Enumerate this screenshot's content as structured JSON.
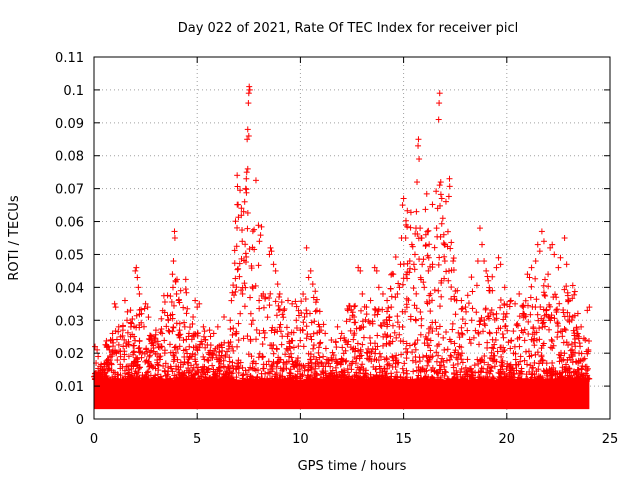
{
  "chart_data": {
    "type": "scatter",
    "title": "Day 022 of 2021, Rate Of TEC Index for receiver picl",
    "xlabel": "GPS time / hours",
    "ylabel": "ROTI / TECUs",
    "xlim": [
      0,
      25
    ],
    "ylim": [
      0,
      0.11
    ],
    "x_ticks": [
      "0",
      "5",
      "10",
      "15",
      "20",
      "25"
    ],
    "y_ticks": [
      "0",
      "0.01",
      "0.02",
      "0.03",
      "0.04",
      "0.05",
      "0.06",
      "0.07",
      "0.08",
      "0.09",
      "0.1",
      "0.11"
    ],
    "grid": true,
    "legend": "none",
    "marker": "+",
    "color": "#ff0000",
    "background_band": {
      "x": [
        0,
        24
      ],
      "y": [
        0.003,
        0.012
      ],
      "note": "dense continuous cluster of points"
    },
    "series": [
      {
        "points": [
          [
            0.05,
            0.022
          ],
          [
            0.1,
            0.017
          ],
          [
            0.15,
            0.021
          ],
          [
            0.2,
            0.019
          ],
          [
            0.3,
            0.016
          ],
          [
            0.5,
            0.014
          ],
          [
            0.7,
            0.018
          ],
          [
            0.9,
            0.026
          ],
          [
            1.0,
            0.035
          ],
          [
            1.05,
            0.034
          ],
          [
            1.2,
            0.028
          ],
          [
            1.4,
            0.027
          ],
          [
            1.5,
            0.036
          ],
          [
            1.6,
            0.03
          ],
          [
            1.8,
            0.029
          ],
          [
            2.0,
            0.045
          ],
          [
            2.05,
            0.046
          ],
          [
            2.1,
            0.043
          ],
          [
            2.15,
            0.04
          ],
          [
            2.2,
            0.038
          ],
          [
            2.3,
            0.032
          ],
          [
            2.5,
            0.035
          ],
          [
            2.6,
            0.034
          ],
          [
            2.8,
            0.025
          ],
          [
            3.0,
            0.027
          ],
          [
            3.3,
            0.026
          ],
          [
            3.6,
            0.03
          ],
          [
            3.8,
            0.044
          ],
          [
            3.85,
            0.048
          ],
          [
            3.9,
            0.057
          ],
          [
            3.92,
            0.055
          ],
          [
            3.95,
            0.042
          ],
          [
            4.0,
            0.038
          ],
          [
            4.1,
            0.036
          ],
          [
            4.2,
            0.039
          ],
          [
            4.4,
            0.028
          ],
          [
            4.6,
            0.026
          ],
          [
            4.8,
            0.031
          ],
          [
            4.9,
            0.036
          ],
          [
            5.0,
            0.034
          ],
          [
            5.1,
            0.035
          ],
          [
            5.3,
            0.028
          ],
          [
            5.4,
            0.024
          ],
          [
            5.6,
            0.027
          ],
          [
            5.8,
            0.026
          ],
          [
            6.0,
            0.028
          ],
          [
            6.3,
            0.031
          ],
          [
            6.6,
            0.03
          ],
          [
            6.9,
            0.026
          ],
          [
            7.0,
            0.029
          ],
          [
            7.2,
            0.038
          ],
          [
            7.25,
            0.063
          ],
          [
            7.3,
            0.066
          ],
          [
            7.35,
            0.07
          ],
          [
            7.38,
            0.073
          ],
          [
            7.4,
            0.075
          ],
          [
            7.42,
            0.085
          ],
          [
            7.45,
            0.088
          ],
          [
            7.48,
            0.096
          ],
          [
            7.5,
            0.099
          ],
          [
            7.52,
            0.101
          ],
          [
            7.55,
            0.1
          ],
          [
            7.45,
            0.076
          ],
          [
            7.5,
            0.086
          ],
          [
            7.6,
            0.032
          ],
          [
            7.7,
            0.03
          ],
          [
            8.0,
            0.036
          ],
          [
            8.2,
            0.038
          ],
          [
            8.3,
            0.037
          ],
          [
            8.5,
            0.05
          ],
          [
            8.55,
            0.052
          ],
          [
            8.6,
            0.051
          ],
          [
            8.7,
            0.047
          ],
          [
            8.8,
            0.045
          ],
          [
            8.9,
            0.041
          ],
          [
            9.0,
            0.038
          ],
          [
            9.2,
            0.033
          ],
          [
            9.4,
            0.036
          ],
          [
            9.6,
            0.035
          ],
          [
            9.8,
            0.03
          ],
          [
            10.0,
            0.027
          ],
          [
            10.2,
            0.031
          ],
          [
            10.3,
            0.052
          ],
          [
            10.4,
            0.043
          ],
          [
            10.5,
            0.045
          ],
          [
            10.6,
            0.041
          ],
          [
            10.8,
            0.033
          ],
          [
            11.0,
            0.027
          ],
          [
            11.2,
            0.026
          ],
          [
            11.5,
            0.024
          ],
          [
            11.8,
            0.028
          ],
          [
            12.0,
            0.026
          ],
          [
            12.3,
            0.033
          ],
          [
            12.6,
            0.031
          ],
          [
            12.8,
            0.046
          ],
          [
            12.9,
            0.045
          ],
          [
            13.0,
            0.038
          ],
          [
            13.2,
            0.034
          ],
          [
            13.4,
            0.036
          ],
          [
            13.6,
            0.046
          ],
          [
            13.7,
            0.045
          ],
          [
            13.8,
            0.04
          ],
          [
            14.0,
            0.038
          ],
          [
            14.2,
            0.036
          ],
          [
            14.4,
            0.034
          ],
          [
            14.5,
            0.044
          ],
          [
            14.6,
            0.037
          ],
          [
            14.7,
            0.038
          ],
          [
            14.8,
            0.04
          ],
          [
            14.85,
            0.047
          ],
          [
            14.9,
            0.055
          ],
          [
            14.95,
            0.065
          ],
          [
            15.0,
            0.067
          ],
          [
            15.1,
            0.055
          ],
          [
            15.3,
            0.048
          ],
          [
            15.4,
            0.053
          ],
          [
            15.5,
            0.047
          ],
          [
            15.55,
            0.05
          ],
          [
            15.6,
            0.058
          ],
          [
            15.62,
            0.063
          ],
          [
            15.65,
            0.072
          ],
          [
            15.7,
            0.083
          ],
          [
            15.72,
            0.085
          ],
          [
            15.75,
            0.079
          ],
          [
            15.8,
            0.058
          ],
          [
            15.85,
            0.055
          ],
          [
            15.9,
            0.047
          ],
          [
            16.0,
            0.04
          ],
          [
            16.2,
            0.045
          ],
          [
            16.4,
            0.047
          ],
          [
            16.6,
            0.058
          ],
          [
            16.65,
            0.064
          ],
          [
            16.7,
            0.091
          ],
          [
            16.72,
            0.096
          ],
          [
            16.75,
            0.099
          ],
          [
            16.8,
            0.072
          ],
          [
            16.85,
            0.067
          ],
          [
            16.9,
            0.061
          ],
          [
            16.95,
            0.056
          ],
          [
            17.0,
            0.048
          ],
          [
            17.2,
            0.045
          ],
          [
            17.4,
            0.048
          ],
          [
            17.6,
            0.039
          ],
          [
            17.8,
            0.036
          ],
          [
            18.0,
            0.034
          ],
          [
            18.3,
            0.03
          ],
          [
            18.6,
            0.048
          ],
          [
            18.7,
            0.058
          ],
          [
            18.8,
            0.053
          ],
          [
            18.9,
            0.048
          ],
          [
            19.0,
            0.045
          ],
          [
            19.1,
            0.042
          ],
          [
            19.3,
            0.039
          ],
          [
            19.5,
            0.046
          ],
          [
            19.6,
            0.049
          ],
          [
            19.7,
            0.047
          ],
          [
            19.9,
            0.04
          ],
          [
            20.0,
            0.032
          ],
          [
            20.2,
            0.036
          ],
          [
            20.4,
            0.035
          ],
          [
            20.6,
            0.038
          ],
          [
            20.8,
            0.034
          ],
          [
            21.0,
            0.044
          ],
          [
            21.1,
            0.043
          ],
          [
            21.2,
            0.046
          ],
          [
            21.4,
            0.048
          ],
          [
            21.5,
            0.053
          ],
          [
            21.6,
            0.051
          ],
          [
            21.7,
            0.057
          ],
          [
            21.8,
            0.054
          ],
          [
            22.0,
            0.044
          ],
          [
            22.1,
            0.052
          ],
          [
            22.2,
            0.053
          ],
          [
            22.3,
            0.05
          ],
          [
            22.5,
            0.046
          ],
          [
            22.6,
            0.049
          ],
          [
            22.8,
            0.055
          ],
          [
            22.9,
            0.047
          ],
          [
            23.0,
            0.036
          ],
          [
            23.2,
            0.031
          ],
          [
            23.4,
            0.026
          ],
          [
            23.6,
            0.028
          ],
          [
            23.8,
            0.024
          ],
          [
            23.9,
            0.033
          ],
          [
            24.0,
            0.034
          ],
          [
            23.95,
            0.021
          ],
          [
            23.7,
            0.018
          ],
          [
            23.5,
            0.02
          ]
        ]
      }
    ]
  }
}
